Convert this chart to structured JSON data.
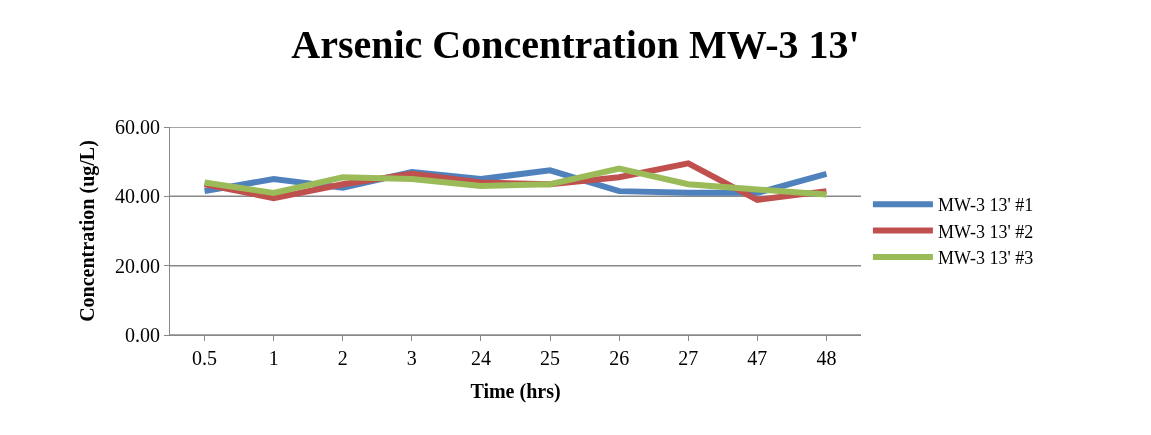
{
  "chart_data": {
    "type": "line",
    "title": "Arsenic Concentration MW-3 13'",
    "xlabel": "Time (hrs)",
    "ylabel": "Concentration (ug/L)",
    "categories": [
      "0.5",
      "1",
      "2",
      "3",
      "24",
      "25",
      "26",
      "27",
      "47",
      "48"
    ],
    "series": [
      {
        "name": "MW-3 13' #1",
        "color": "#4f81bd",
        "values": [
          41.5,
          45,
          42.5,
          47,
          45,
          47.5,
          41.5,
          41,
          41,
          46.5
        ]
      },
      {
        "name": "MW-3 13' #2",
        "color": "#c0504d",
        "values": [
          43.5,
          39.5,
          43.5,
          46.5,
          44,
          43.5,
          45.5,
          49.5,
          39,
          41.5
        ]
      },
      {
        "name": "MW-3 13' #3",
        "color": "#9bbb59",
        "values": [
          44,
          41,
          45.5,
          45,
          43,
          43.5,
          48,
          43.5,
          42,
          40.5
        ]
      }
    ],
    "ylim": [
      0,
      60
    ],
    "yticks": [
      {
        "value": 0,
        "label": "0.00"
      },
      {
        "value": 20,
        "label": "20.00"
      },
      {
        "value": 40,
        "label": "40.00"
      },
      {
        "value": 60,
        "label": "60.00"
      }
    ],
    "grid": "y",
    "legend": "right",
    "marker": "none",
    "line_style": "solid"
  }
}
